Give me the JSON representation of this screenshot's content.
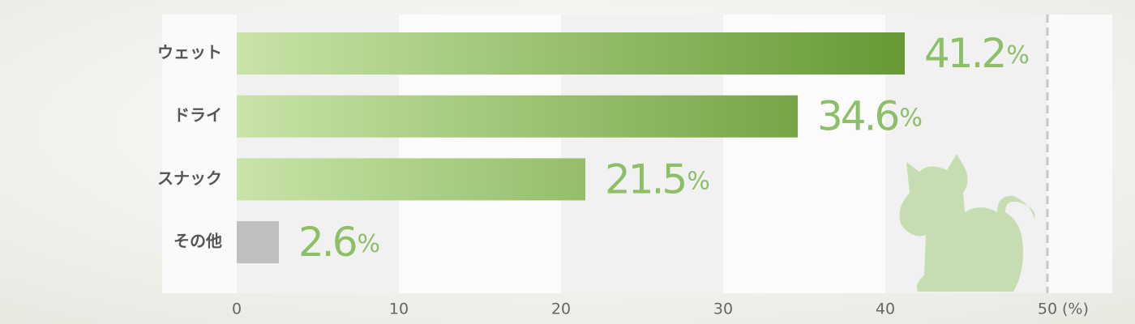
{
  "chart_data": {
    "type": "bar",
    "orientation": "horizontal",
    "categories": [
      "ウェット",
      "ドライ",
      "スナック",
      "その他"
    ],
    "values": [
      41.2,
      34.6,
      21.5,
      2.6
    ],
    "value_labels": [
      "41.2%",
      "34.6%",
      "21.5%",
      "2.6%"
    ],
    "colors": [
      "#669933",
      "#669933",
      "#669933",
      "#c0bebe"
    ],
    "gradient_start": "#c8e4a8",
    "label_color": "#8cbf68",
    "xlim": [
      0,
      50
    ],
    "xticks": [
      0,
      10,
      20,
      30,
      40,
      50
    ],
    "x_unit": "(%)",
    "reference_line": 50
  }
}
